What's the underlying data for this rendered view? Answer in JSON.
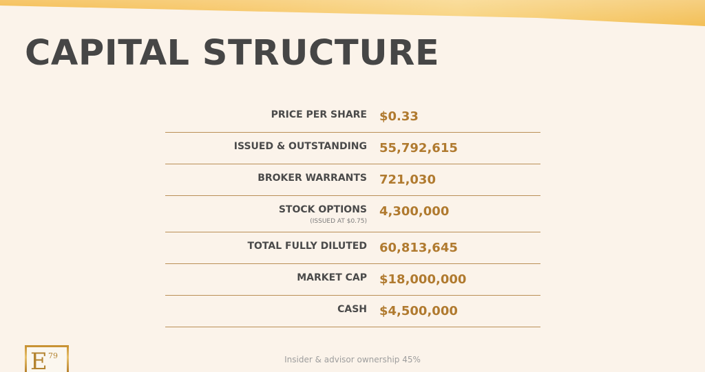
{
  "title": "CAPITAL STRUCTURE",
  "rows": [
    {
      "label": "PRICE PER SHARE",
      "note": "",
      "value": "$0.33"
    },
    {
      "label": "ISSUED & OUTSTANDING",
      "note": "",
      "value": "55,792,615"
    },
    {
      "label": "BROKER WARRANTS",
      "note": "",
      "value": "721,030"
    },
    {
      "label": "STOCK OPTIONS",
      "note": "(ISSUED AT $0.75)",
      "value": "4,300,000"
    },
    {
      "label": "TOTAL FULLY DILUTED",
      "note": "",
      "value": "60,813,645"
    },
    {
      "label": "MARKET CAP",
      "note": "",
      "value": "$18,000,000"
    },
    {
      "label": "CASH",
      "note": "",
      "value": "$4,500,000"
    }
  ],
  "footnote": "Insider & advisor ownership 45%",
  "logo": {
    "letter": "E",
    "number": "79"
  },
  "colors": {
    "background": "#fbf3ea",
    "accent": "#b07a2f",
    "title": "#464646",
    "divider": "#b98e55"
  }
}
